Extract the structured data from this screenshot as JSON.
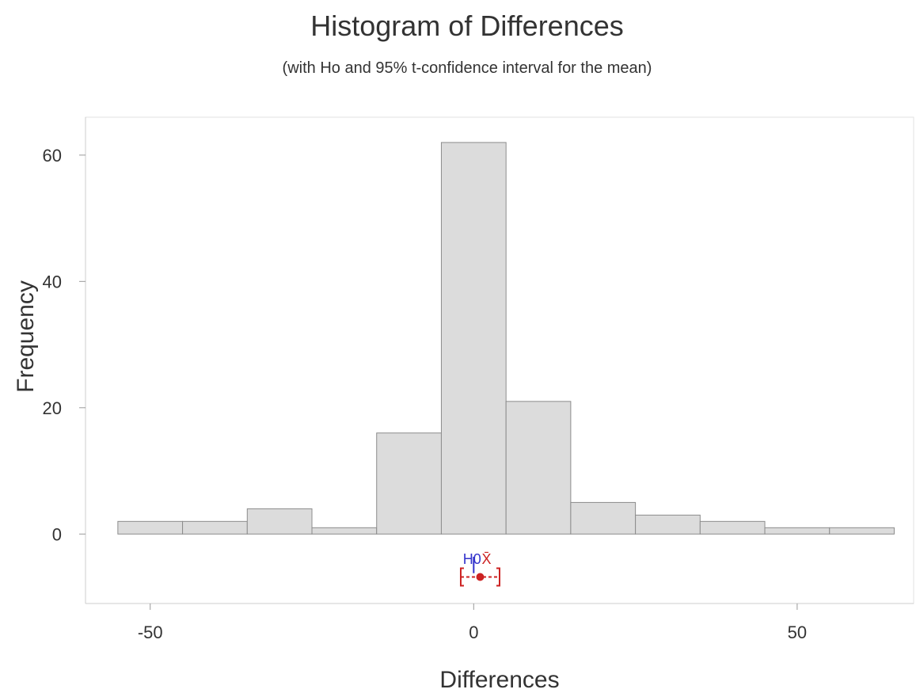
{
  "chart_data": {
    "type": "histogram",
    "title": "Histogram of Differences",
    "subtitle": "(with Ho and 95% t-confidence interval for the mean)",
    "xlabel": "Differences",
    "ylabel": "Frequency",
    "xlim": [
      -60,
      68
    ],
    "ylim": [
      -11,
      66
    ],
    "x_ticks": [
      -50,
      0,
      50
    ],
    "y_ticks": [
      0,
      20,
      40,
      60
    ],
    "bin_width": 10,
    "bins": [
      {
        "start": -55,
        "end": -45,
        "count": 2
      },
      {
        "start": -45,
        "end": -35,
        "count": 2
      },
      {
        "start": -35,
        "end": -25,
        "count": 4
      },
      {
        "start": -25,
        "end": -15,
        "count": 1
      },
      {
        "start": -15,
        "end": -5,
        "count": 16
      },
      {
        "start": -5,
        "end": 5,
        "count": 62
      },
      {
        "start": 5,
        "end": 15,
        "count": 21
      },
      {
        "start": 15,
        "end": 25,
        "count": 5
      },
      {
        "start": 25,
        "end": 35,
        "count": 3
      },
      {
        "start": 35,
        "end": 45,
        "count": 2
      },
      {
        "start": 45,
        "end": 55,
        "count": 1
      },
      {
        "start": 55,
        "end": 65,
        "count": 1
      }
    ],
    "h0": {
      "label": "H0",
      "value": 0,
      "color": "#3333cc"
    },
    "mean_marker": {
      "label": "X̄",
      "value": 1,
      "color": "#cc2222"
    },
    "confidence_interval": {
      "low": -2,
      "high": 4,
      "color": "#cc2222"
    },
    "grid": false
  }
}
